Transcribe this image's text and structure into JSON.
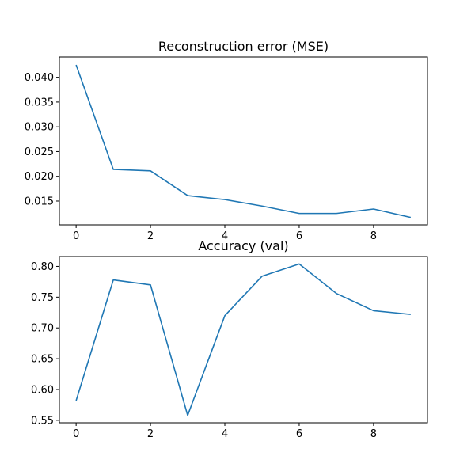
{
  "chart_data": [
    {
      "type": "line",
      "title": "Reconstruction error (MSE)",
      "xlabel": "",
      "ylabel": "",
      "x": [
        0,
        1,
        2,
        3,
        4,
        5,
        6,
        7,
        8,
        9
      ],
      "series": [
        {
          "values": [
            0.0425,
            0.0214,
            0.0211,
            0.0161,
            0.0153,
            0.014,
            0.0125,
            0.0125,
            0.0134,
            0.0117
          ],
          "color": "#1f77b4"
        }
      ],
      "xlim": [
        -0.45,
        9.45
      ],
      "ylim": [
        0.0102,
        0.0441
      ],
      "xticks": [
        0,
        2,
        4,
        6,
        8
      ],
      "xtick_labels": [
        "0",
        "2",
        "4",
        "6",
        "8"
      ],
      "yticks": [
        0.015,
        0.02,
        0.025,
        0.03,
        0.035,
        0.04
      ],
      "ytick_labels": [
        "0.015",
        "0.020",
        "0.025",
        "0.030",
        "0.035",
        "0.040"
      ],
      "grid": false
    },
    {
      "type": "line",
      "title": "Accuracy (val)",
      "xlabel": "",
      "ylabel": "",
      "x": [
        0,
        1,
        2,
        3,
        4,
        5,
        6,
        7,
        8,
        9
      ],
      "series": [
        {
          "values": [
            0.582,
            0.778,
            0.77,
            0.558,
            0.72,
            0.784,
            0.804,
            0.756,
            0.728,
            0.722
          ],
          "color": "#1f77b4"
        }
      ],
      "xlim": [
        -0.45,
        9.45
      ],
      "ylim": [
        0.546,
        0.816
      ],
      "xticks": [
        0,
        2,
        4,
        6,
        8
      ],
      "xtick_labels": [
        "0",
        "2",
        "4",
        "6",
        "8"
      ],
      "yticks": [
        0.55,
        0.6,
        0.65,
        0.7,
        0.75,
        0.8
      ],
      "ytick_labels": [
        "0.55",
        "0.60",
        "0.65",
        "0.70",
        "0.75",
        "0.80"
      ],
      "grid": false
    }
  ]
}
